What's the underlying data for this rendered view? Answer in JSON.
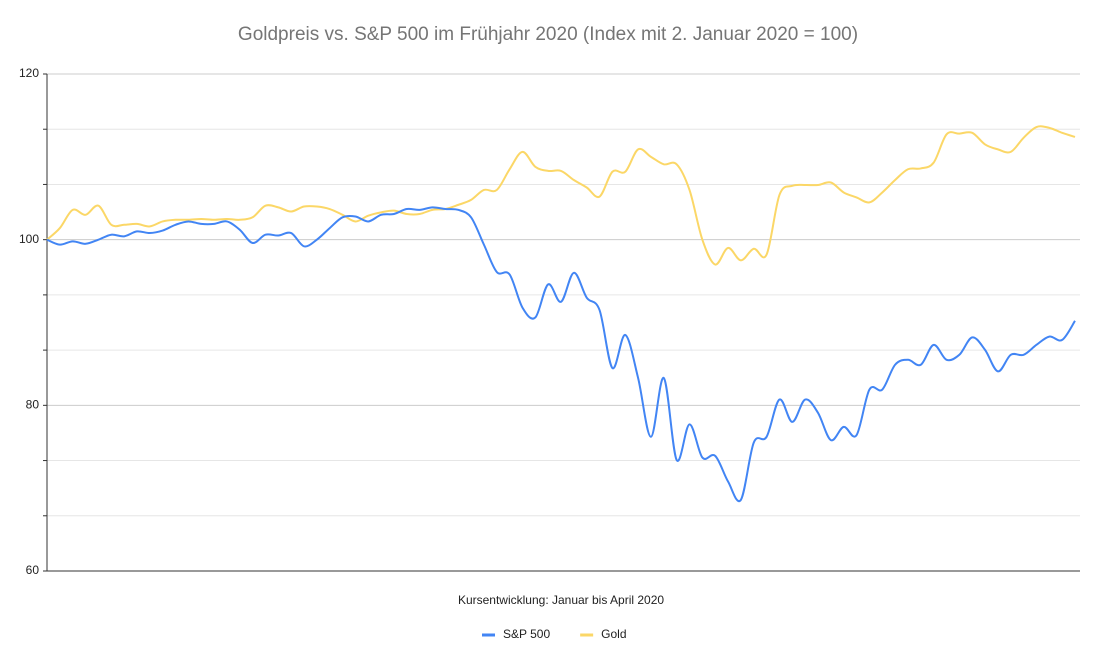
{
  "chart_data": {
    "type": "line",
    "title": "Goldpreis vs. S&P 500 im Frühjahr 2020 (Index mit 2. Januar 2020 = 100)",
    "x_label": "Kursentwicklung: Januar bis April 2020",
    "ylim": [
      60,
      120
    ],
    "yticks": [
      60,
      80,
      100,
      120
    ],
    "grid": true,
    "legend": "bottom",
    "series": [
      {
        "name": "S&P 500",
        "color": "#4285f4",
        "values": [
          100,
          99.4,
          99.8,
          99.5,
          100,
          100.6,
          100.4,
          101.0,
          100.8,
          101.1,
          101.8,
          102.2,
          101.9,
          101.9,
          102.2,
          101.2,
          99.6,
          100.6,
          100.5,
          100.8,
          99.2,
          100,
          101.4,
          102.7,
          102.8,
          102.2,
          103.0,
          103.1,
          103.7,
          103.6,
          103.9,
          103.7,
          103.6,
          102.7,
          99.4,
          96.1,
          95.8,
          91.8,
          90.6,
          94.6,
          92.5,
          96.0,
          93.0,
          91.5,
          84.5,
          88.5,
          83.3,
          76.2,
          83.3,
          73.4,
          77.7,
          73.7,
          73.9,
          70.8,
          68.6,
          75.5,
          76.2,
          80.7,
          78.0,
          80.7,
          79.1,
          75.8,
          77.4,
          76.4,
          81.9,
          81.9,
          84.9,
          85.5,
          84.9,
          87.3,
          85.5,
          86.1,
          88.2,
          86.7,
          84.1,
          86.1,
          86.1,
          87.3,
          88.3,
          87.9,
          90.2
        ]
      },
      {
        "name": "Gold",
        "color": "#fbd767",
        "values": [
          100,
          101.4,
          103.6,
          103.0,
          104.1,
          101.8,
          101.8,
          101.9,
          101.6,
          102.2,
          102.4,
          102.4,
          102.5,
          102.4,
          102.5,
          102.4,
          102.7,
          104.1,
          103.9,
          103.4,
          104.0,
          104.0,
          103.7,
          103.0,
          102.2,
          102.9,
          103.3,
          103.5,
          103.1,
          103.1,
          103.6,
          103.7,
          104.2,
          104.8,
          106.0,
          106.0,
          108.5,
          110.6,
          108.8,
          108.3,
          108.3,
          107.2,
          106.3,
          105.2,
          108.2,
          108.2,
          110.9,
          110.0,
          109.1,
          109.1,
          106.0,
          100.0,
          97.0,
          99.0,
          97.5,
          98.9,
          98.2,
          105.4,
          106.5,
          106.6,
          106.6,
          106.9,
          105.7,
          105.1,
          104.5,
          105.7,
          107.2,
          108.5,
          108.6,
          109.3,
          112.7,
          112.8,
          112.9,
          111.5,
          110.9,
          110.6,
          112.3,
          113.6,
          113.5,
          112.9,
          112.4
        ]
      }
    ]
  }
}
